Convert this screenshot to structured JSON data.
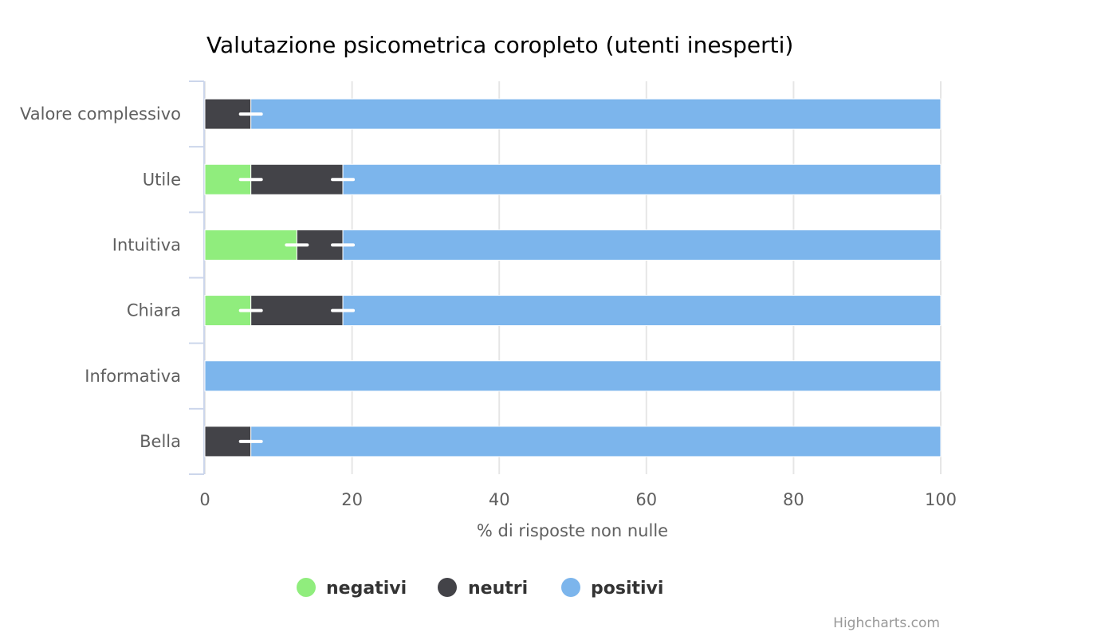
{
  "chart_data": {
    "type": "bar",
    "stacking": "percent",
    "orientation": "horizontal",
    "title": "Valutazione psicometrica coropleto (utenti inesperti)",
    "categories": [
      "Valore complessivo",
      "Utile",
      "Intuitiva",
      "Chiara",
      "Informativa",
      "Bella"
    ],
    "series": [
      {
        "name": "negativi",
        "color": "#90ed7d",
        "values": [
          0,
          6.25,
          12.5,
          6.25,
          0,
          0
        ]
      },
      {
        "name": "neutri",
        "color": "#434348",
        "values": [
          6.25,
          12.5,
          6.25,
          12.5,
          0,
          6.25
        ]
      },
      {
        "name": "positivi",
        "color": "#7cb5ec",
        "values": [
          93.75,
          81.25,
          81.25,
          81.25,
          100,
          93.75
        ]
      }
    ],
    "xlabel": "% di risposte non nulle",
    "xlim": [
      0,
      100
    ],
    "xticks": [
      "0",
      "20",
      "40",
      "60",
      "80",
      "100"
    ],
    "grid": true,
    "legend_position": "bottom-center",
    "credits": "Highcharts.com"
  }
}
